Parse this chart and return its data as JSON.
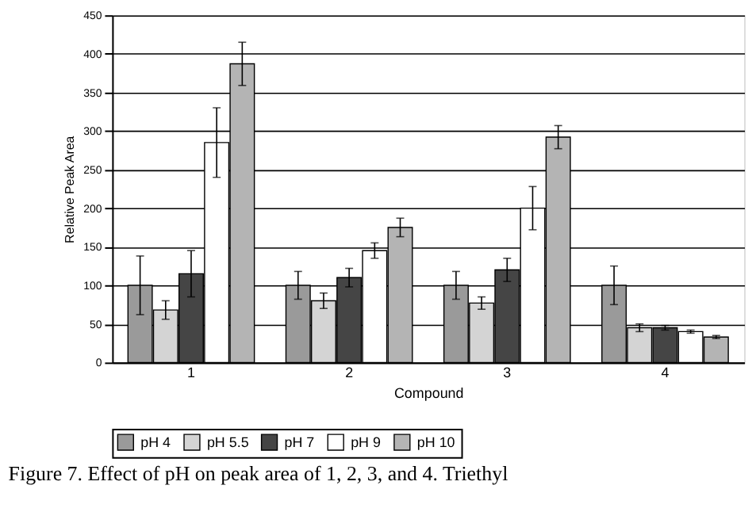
{
  "chart_data": {
    "type": "bar",
    "xlabel": "Compound",
    "ylabel": "Relative Peak Area",
    "categories": [
      "1",
      "2",
      "3",
      "4"
    ],
    "series": [
      {
        "name": "pH 4",
        "color": "#9a9a9a",
        "values": [
          100,
          100,
          100,
          100
        ],
        "errors": [
          38,
          18,
          18,
          25
        ]
      },
      {
        "name": "pH 5.5",
        "color": "#d4d4d4",
        "values": [
          68,
          80,
          77,
          45
        ],
        "errors": [
          12,
          10,
          8,
          5
        ]
      },
      {
        "name": "pH 7",
        "color": "#454545",
        "values": [
          115,
          110,
          120,
          45
        ],
        "errors": [
          30,
          12,
          15,
          3
        ]
      },
      {
        "name": "pH 9",
        "color": "#ffffff",
        "values": [
          285,
          145,
          200,
          40
        ],
        "errors": [
          45,
          10,
          28,
          2
        ]
      },
      {
        "name": "pH 10",
        "color": "#b4b4b4",
        "values": [
          387,
          175,
          292,
          33
        ],
        "errors": [
          28,
          12,
          15,
          2
        ]
      }
    ],
    "ylim": [
      0,
      450
    ],
    "yticks": [
      0,
      50,
      100,
      150,
      200,
      250,
      300,
      350,
      400,
      450
    ],
    "grid": "y",
    "legend": "bottom",
    "annotations": [
      "Figure 7.  Effect of pH on peak area of 1, 2, 3, and 4. Triethyl"
    ]
  }
}
